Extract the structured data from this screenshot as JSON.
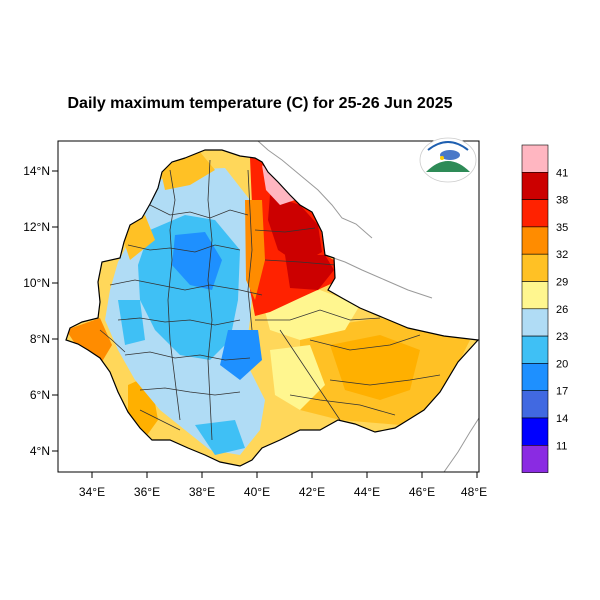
{
  "title": "Daily maximum temperature (C) for 25-26 Jun 2025",
  "axes": {
    "x_ticks": [
      "34°E",
      "36°E",
      "38°E",
      "40°E",
      "42°E",
      "44°E",
      "46°E",
      "48°E"
    ],
    "y_ticks": [
      "14°N",
      "12°N",
      "10°N",
      "8°N",
      "6°N",
      "4°N"
    ]
  },
  "colorbar": {
    "labels": [
      "41",
      "38",
      "35",
      "32",
      "29",
      "26",
      "23",
      "20",
      "17",
      "14",
      "11"
    ],
    "colors": [
      "#ffb6c1",
      "#cc0000",
      "#ff2200",
      "#ff8c00",
      "#ffc125",
      "#fff68f",
      "#b0dcf5",
      "#3fc0f5",
      "#1e90ff",
      "#4169e1",
      "#0000ff",
      "#8a2be2"
    ]
  },
  "colors": {
    "land_base": "#ffd75a",
    "outline": "#000000",
    "region_line": "#333333",
    "neighbor_border": "#9a9a9a"
  }
}
